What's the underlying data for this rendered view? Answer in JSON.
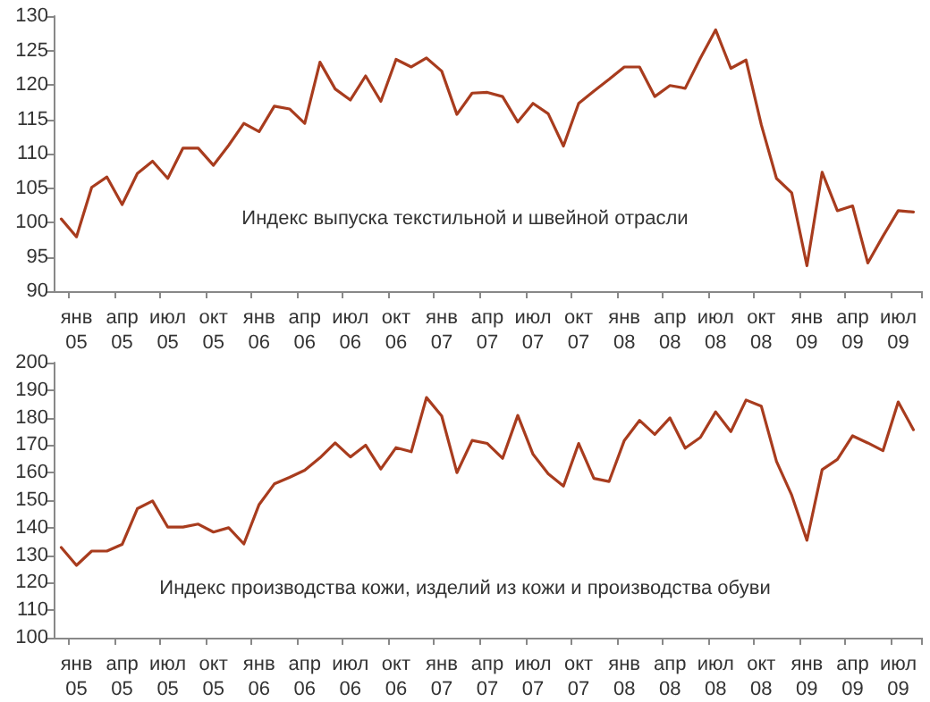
{
  "chart_data": [
    {
      "type": "line",
      "annotations": [
        "Индекс выпуска текстильной и швейной отрасли"
      ],
      "categories": [
        null,
        "янв 05",
        null,
        null,
        "апр 05",
        null,
        null,
        "июл 05",
        null,
        null,
        "окт 05",
        null,
        null,
        "янв 06",
        null,
        null,
        "апр 06",
        null,
        null,
        "июл 06",
        null,
        null,
        "окт 06",
        null,
        null,
        "янв 07",
        null,
        null,
        "апр 07",
        null,
        null,
        "июл 07",
        null,
        null,
        "окт 07",
        null,
        null,
        "янв 08",
        null,
        null,
        "апр 08",
        null,
        null,
        "июл 08",
        null,
        null,
        "окт 08",
        null,
        null,
        "янв 09",
        null,
        null,
        "апр 09",
        null,
        null,
        "июл 09",
        null
      ],
      "series": [
        {
          "color": "#a83c1e",
          "values": [
            100.5,
            97.9,
            105.1,
            106.6,
            102.6,
            107.1,
            108.9,
            106.4,
            110.8,
            110.8,
            108.3,
            111.2,
            114.4,
            113.2,
            116.9,
            116.5,
            114.4,
            123.3,
            119.4,
            117.8,
            121.3,
            117.6,
            123.7,
            122.6,
            123.9,
            122.0,
            115.7,
            118.8,
            118.9,
            118.3,
            114.6,
            117.3,
            115.8,
            111.1,
            117.3,
            119.1,
            120.8,
            122.6,
            122.6,
            118.3,
            119.9,
            119.5,
            123.9,
            128.0,
            122.4,
            123.6,
            114.2,
            106.4,
            104.3,
            93.7,
            107.3,
            101.7,
            102.4,
            94.1,
            98.0,
            101.7,
            101.5
          ]
        }
      ],
      "ylim": [
        90,
        130
      ],
      "yticks": [
        90,
        95,
        100,
        105,
        110,
        115,
        120,
        125,
        130
      ],
      "grid": false,
      "marker": "none",
      "line_style": "solid"
    },
    {
      "type": "line",
      "annotations": [
        "Индекс производства кожи, изделий из кожи и производства обуви"
      ],
      "categories": [
        null,
        "янв 05",
        null,
        null,
        "апр 05",
        null,
        null,
        "июл 05",
        null,
        null,
        "окт 05",
        null,
        null,
        "янв 06",
        null,
        null,
        "апр 06",
        null,
        null,
        "июл 06",
        null,
        null,
        "окт 06",
        null,
        null,
        "янв 07",
        null,
        null,
        "апр 07",
        null,
        null,
        "июл 07",
        null,
        null,
        "окт 07",
        null,
        null,
        "янв 08",
        null,
        null,
        "апр 08",
        null,
        null,
        "июл 08",
        null,
        null,
        "окт 08",
        null,
        null,
        "янв 09",
        null,
        null,
        "апр 09",
        null,
        null,
        "июл 09",
        null
      ],
      "series": [
        {
          "color": "#a83c1e",
          "values": [
            132.8,
            126.3,
            131.5,
            131.5,
            133.9,
            146.9,
            149.7,
            140.2,
            140.2,
            141.3,
            138.4,
            140.0,
            134.1,
            148.4,
            155.9,
            158.3,
            160.9,
            165.4,
            170.8,
            165.7,
            170.0,
            161.3,
            169.1,
            167.6,
            187.3,
            180.6,
            160.0,
            171.7,
            170.6,
            165.2,
            180.8,
            166.7,
            159.6,
            155.1,
            170.6,
            157.9,
            156.8,
            171.7,
            179.0,
            173.9,
            179.9,
            168.9,
            172.8,
            182.1,
            174.9,
            186.4,
            184.2,
            164.1,
            151.8,
            135.4,
            161.1,
            164.8,
            173.4,
            170.8,
            168.0,
            185.7,
            175.6
          ]
        }
      ],
      "ylim": [
        100,
        200
      ],
      "yticks": [
        100,
        110,
        120,
        130,
        140,
        150,
        160,
        170,
        180,
        190,
        200
      ],
      "grid": false,
      "marker": "none",
      "line_style": "solid"
    }
  ]
}
